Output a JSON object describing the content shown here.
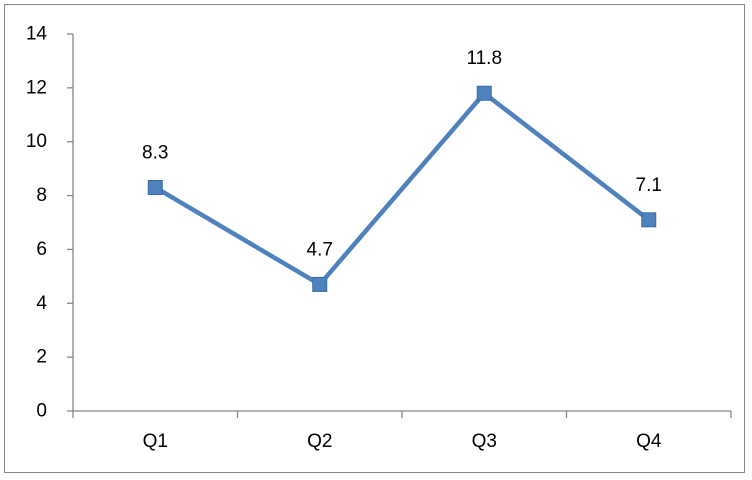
{
  "chart_data": {
    "type": "line",
    "title": "",
    "xlabel": "",
    "ylabel": "",
    "categories": [
      "Q1",
      "Q2",
      "Q3",
      "Q4"
    ],
    "series": [
      {
        "values": [
          8.3,
          4.7,
          11.8,
          7.1
        ],
        "data_labels": [
          "8.3",
          "4.7",
          "11.8",
          "7.1"
        ],
        "color": "#4F81BD",
        "marker": "square"
      }
    ],
    "ylim": [
      0,
      14
    ],
    "yticks": [
      0,
      2,
      4,
      6,
      8,
      10,
      12,
      14
    ],
    "ytick_labels": [
      "0",
      "2",
      "4",
      "6",
      "8",
      "10",
      "12",
      "14"
    ],
    "grid": false,
    "legend": "none",
    "axis_color": "#868686"
  }
}
